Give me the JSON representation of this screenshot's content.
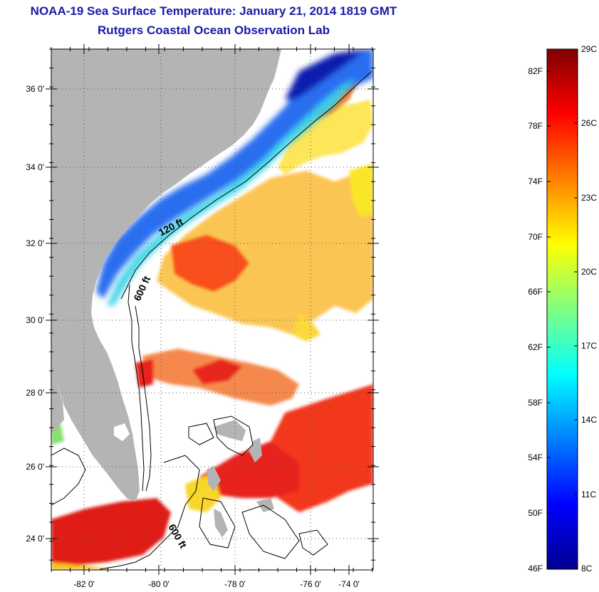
{
  "header": {
    "title": "NOAA-19 Sea Surface Temperature:  January 21, 2014 1819 GMT",
    "subtitle": "Rutgers Coastal Ocean Observation Lab"
  },
  "map": {
    "lat_labels": [
      "36 0'",
      "34 0'",
      "32 0'",
      "30 0'",
      "28 0'",
      "26 0'",
      "24 0'"
    ],
    "lon_labels": [
      "-82 0'",
      "-80 0'",
      "-78 0'",
      "-76 0'",
      "-74 0'"
    ],
    "contours": [
      "120 ft",
      "600 ft",
      "600 ft"
    ],
    "colors": {
      "land": "#b4b4b4",
      "nodata": "#ffffff",
      "gridline": "#555555"
    }
  },
  "colorbar": {
    "fahrenheit_labels": [
      "82F",
      "78F",
      "74F",
      "70F",
      "66F",
      "62F",
      "58F",
      "54F",
      "50F",
      "46F"
    ],
    "celsius_labels": [
      "29C",
      "26C",
      "23C",
      "20C",
      "17C",
      "14C",
      "11C",
      "8C"
    ],
    "colormap": [
      "#00008f",
      "#0000ff",
      "#0080ff",
      "#00ffff",
      "#80ff80",
      "#ffff00",
      "#ff8000",
      "#ff0000",
      "#800000"
    ]
  }
}
